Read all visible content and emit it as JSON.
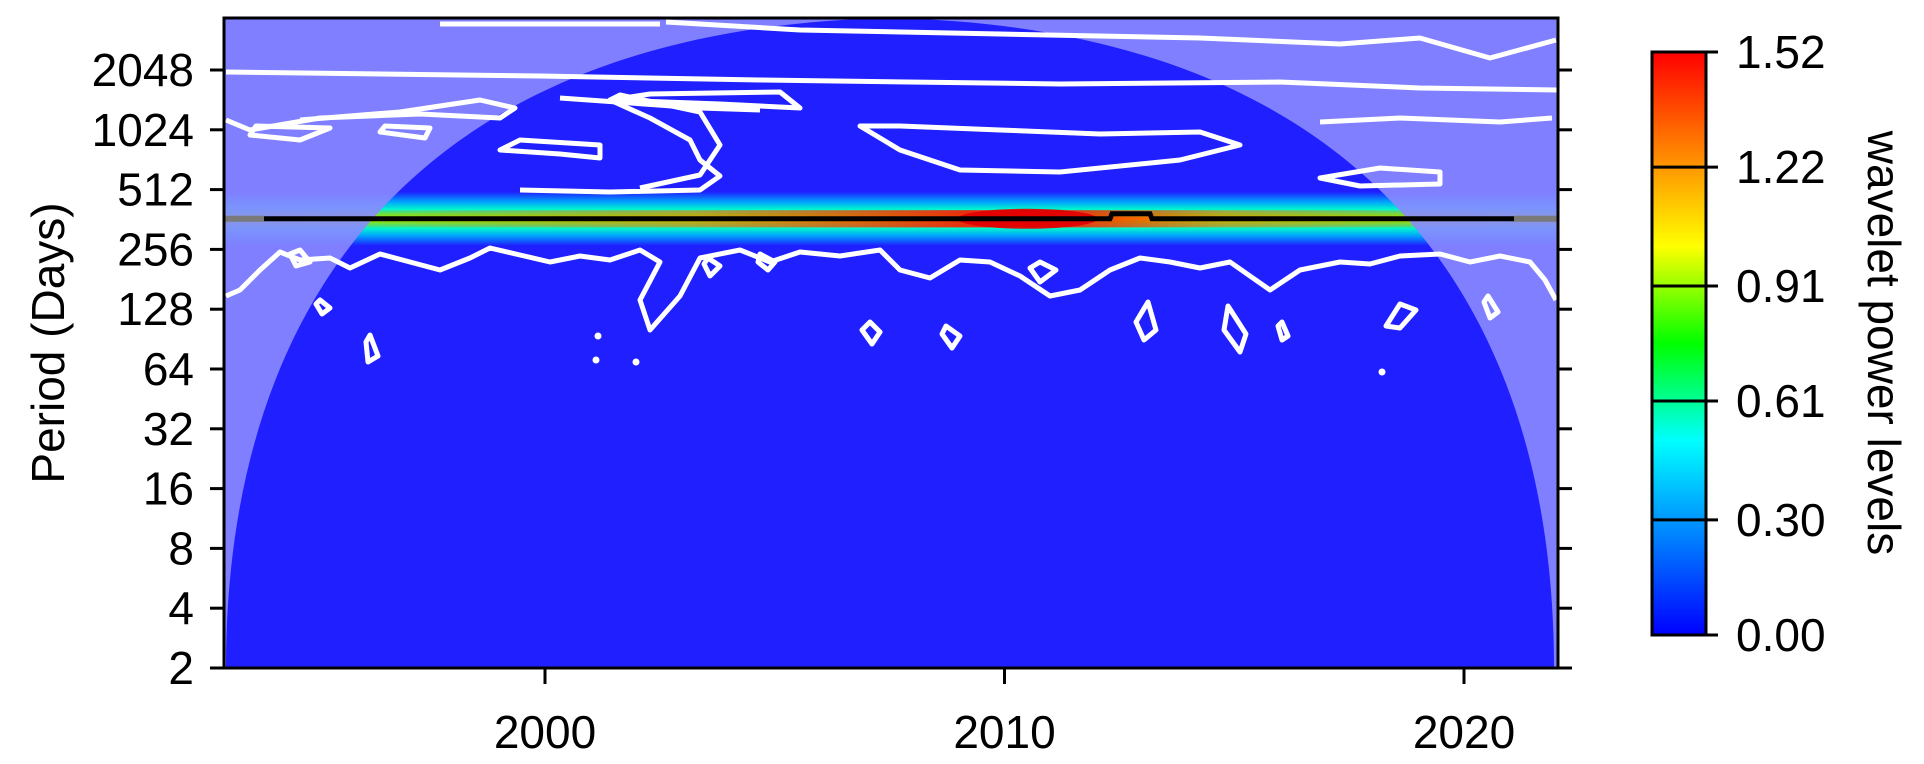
{
  "chart_data": {
    "type": "heatmap",
    "title": "",
    "xlabel": "",
    "ylabel": "Period (Days)",
    "xlim": [
      1993.0,
      2022.0
    ],
    "x_ticks": [
      {
        "value": 2000,
        "label": "2000"
      },
      {
        "value": 2010,
        "label": "2010"
      },
      {
        "value": 2020,
        "label": "2020"
      }
    ],
    "y_scale": "log2",
    "ylim": [
      2,
      4096
    ],
    "y_ticks": [
      {
        "value": 2,
        "label": "2"
      },
      {
        "value": 4,
        "label": "4"
      },
      {
        "value": 8,
        "label": "8"
      },
      {
        "value": 16,
        "label": "16"
      },
      {
        "value": 32,
        "label": "32"
      },
      {
        "value": 64,
        "label": "64"
      },
      {
        "value": 128,
        "label": "128"
      },
      {
        "value": 256,
        "label": "256"
      },
      {
        "value": 512,
        "label": "512"
      },
      {
        "value": 1024,
        "label": "1024"
      },
      {
        "value": 2048,
        "label": "2048"
      }
    ],
    "colorbar": {
      "label": "wavelet power levels",
      "min": 0.0,
      "max": 1.52,
      "ticks": [
        {
          "value": 0.0,
          "label": "0.00"
        },
        {
          "value": 0.3,
          "label": "0.30"
        },
        {
          "value": 0.61,
          "label": "0.61"
        },
        {
          "value": 0.91,
          "label": "0.91"
        },
        {
          "value": 1.22,
          "label": "1.22"
        },
        {
          "value": 1.52,
          "label": "1.52"
        }
      ],
      "colormap": [
        "#0000ff",
        "#0080ff",
        "#00ffff",
        "#00ff00",
        "#ffff00",
        "#ff8000",
        "#ff0000"
      ]
    },
    "power_ridge": {
      "description_period_days": 365,
      "peak_power": 1.52,
      "peak_year": 2010.5,
      "band_half_width_octaves": 0.45
    },
    "colors": {
      "background_power": "#1f1fff",
      "cone_of_influence_shade": "#8a8aff",
      "significance_contour": "#ffffff",
      "ridge_line": "#000000"
    }
  }
}
